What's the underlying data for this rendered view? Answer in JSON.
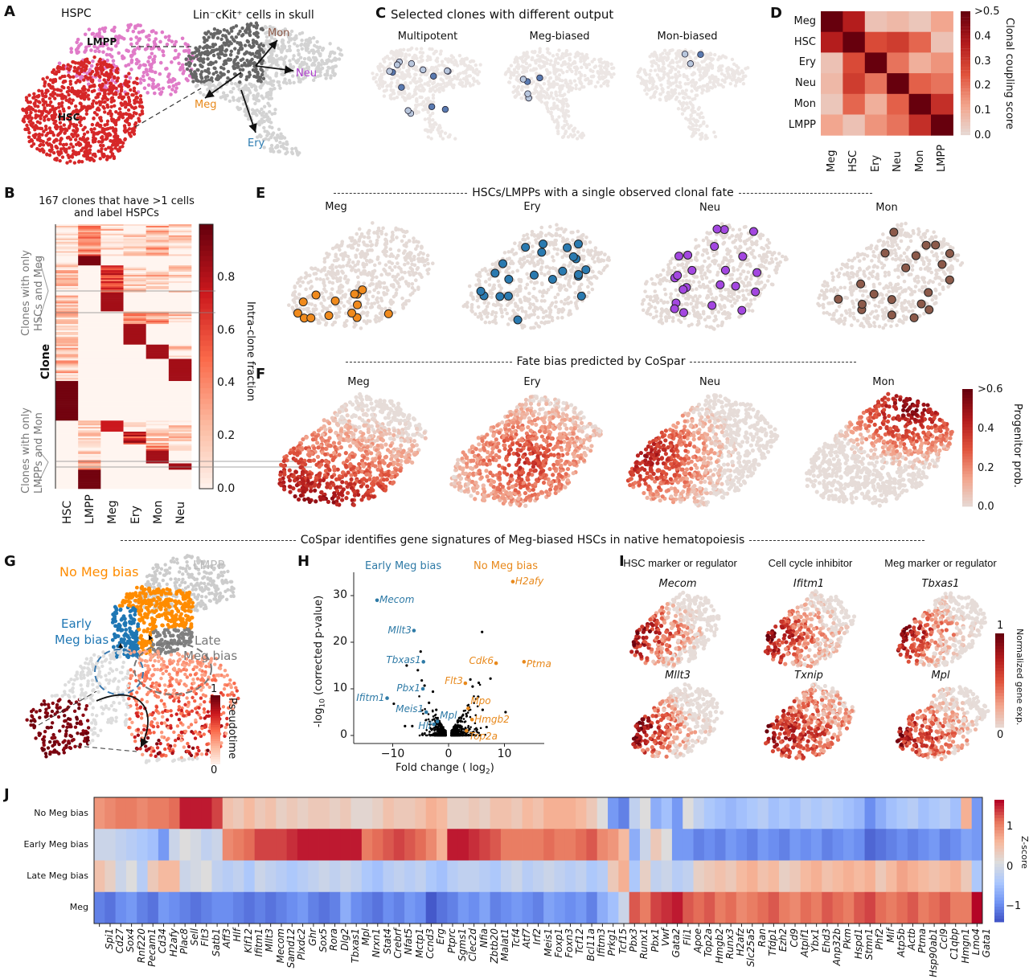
{
  "panel_letters": {
    "a": "A",
    "b": "B",
    "c": "C",
    "d": "D",
    "e": "E",
    "f": "F",
    "g": "G",
    "h": "H",
    "i": "I",
    "j": "J"
  },
  "panel_a": {
    "hspc_title": "HSPC",
    "lmpp_label": "LMPP",
    "hsc_label": "HSC",
    "umap_title": "Lin⁻cKit⁺ cells in skull",
    "fate_labels": {
      "mon": "Mon",
      "neu": "Neu",
      "meg": "Meg",
      "ery": "Ery"
    },
    "colors": {
      "lmpp": "#e07bc8",
      "hsc": "#d62728",
      "mon": "#8c5a4a",
      "neu": "#b040d0",
      "meg": "#e8891c",
      "ery": "#2a7ab0",
      "background": "#d3d3d3",
      "hspc_in_umap": "#666666"
    }
  },
  "panel_c": {
    "title": "Selected clones with different output",
    "subtitles": [
      "Multipotent",
      "Meg-biased",
      "Mon-biased"
    ]
  },
  "panel_e": {
    "header": "HSCs/LMPPs with a single observed clonal fate",
    "subtitles": [
      "Meg",
      "Ery",
      "Neu",
      "Mon"
    ],
    "colors": [
      "#f08a1c",
      "#2a7ab0",
      "#a347e0",
      "#8c5a4a"
    ]
  },
  "panel_f": {
    "header": "Fate bias predicted by CoSpar",
    "subtitles": [
      "Meg",
      "Ery",
      "Neu",
      "Mon"
    ],
    "colorbar": {
      "label": "Progenitor prob.",
      "ticks": [
        ">0.6",
        "0.4",
        "0.2",
        "0.0"
      ]
    }
  },
  "section_header": "CoSpar identifies gene signatures of Meg-biased HSCs in native hematopoiesis",
  "panel_g": {
    "no_meg_bias": "No Meg bias",
    "early_meg_bias": [
      "Early",
      "Meg bias"
    ],
    "late_meg_bias": [
      "Late",
      "Meg bias"
    ],
    "lmpp": "LMPP",
    "colorbar": {
      "label": "Pseudotime",
      "max": "1",
      "min": "0"
    },
    "colors": {
      "no_meg": "#ff8c00",
      "early_meg": "#1f77b4",
      "late_meg": "#808080",
      "lmpp": "#cccccc"
    }
  },
  "panel_i": {
    "titles": [
      "HSC marker or regulator",
      "Cell cycle inhibitor",
      "Meg marker or regulator"
    ],
    "genes": [
      [
        "Mecom",
        "Ifitm1",
        "Tbxas1"
      ],
      [
        "Mllt3",
        "Txnip",
        "Mpl"
      ]
    ],
    "colorbar": {
      "label": "Normalized gene exp.",
      "max": "1",
      "min": "0"
    }
  },
  "chart_data": [
    {
      "panel": "D",
      "type": "heatmap",
      "rows": [
        "Meg",
        "HSC",
        "Ery",
        "Neu",
        "Mon",
        "LMPP"
      ],
      "columns": [
        "Meg",
        "HSC",
        "Ery",
        "Neu",
        "Mon",
        "LMPP"
      ],
      "values": [
        [
          0.5,
          0.37,
          0.06,
          0.08,
          0.05,
          0.12
        ],
        [
          0.37,
          0.5,
          0.27,
          0.3,
          0.22,
          0.06
        ],
        [
          0.06,
          0.27,
          0.5,
          0.2,
          0.1,
          0.15
        ],
        [
          0.08,
          0.3,
          0.2,
          0.5,
          0.23,
          0.2
        ],
        [
          0.05,
          0.22,
          0.1,
          0.23,
          0.5,
          0.33
        ],
        [
          0.12,
          0.06,
          0.15,
          0.2,
          0.33,
          0.5
        ]
      ],
      "colorbar": {
        "label": "Clonal coupling score",
        "ticks": [
          ">0.5",
          "0.4",
          "0.3",
          "0.2",
          "0.1",
          "0.0"
        ],
        "range": [
          0,
          0.5
        ]
      }
    },
    {
      "panel": "B",
      "type": "heatmap",
      "title": [
        "167 clones that have >1 cells",
        "and label HSPCs"
      ],
      "ylabel": "Clone",
      "columns": [
        "HSC",
        "LMPP",
        "Meg",
        "Ery",
        "Mon",
        "Neu"
      ],
      "row_groups": [
        {
          "clones": 20,
          "fractions": [
            0.05,
            0.4,
            0.12,
            0.1,
            0.25,
            0.15
          ]
        },
        {
          "clones": 6,
          "fractions": [
            0.05,
            0.95,
            0,
            0,
            0,
            0
          ]
        },
        {
          "clones": 17,
          "fractions": [
            0.15,
            0,
            0.6,
            0.1,
            0.15,
            0.1
          ]
        },
        {
          "clones": 12,
          "fractions": [
            0.15,
            0,
            0.85,
            0,
            0,
            0
          ]
        },
        {
          "clones": 8,
          "fractions": [
            0.15,
            0,
            0,
            0.4,
            0.35,
            0.15
          ]
        },
        {
          "clones": 13,
          "fractions": [
            0.15,
            0,
            0,
            0.85,
            0,
            0
          ]
        },
        {
          "clones": 9,
          "fractions": [
            0.15,
            0,
            0,
            0,
            0.85,
            0.1
          ]
        },
        {
          "clones": 14,
          "fractions": [
            0.2,
            0,
            0,
            0,
            0,
            0.85
          ]
        },
        {
          "clones": 25,
          "fractions": [
            0.97,
            0,
            0,
            0,
            0,
            0
          ]
        },
        {
          "clones": 7,
          "fractions": [
            0,
            0.05,
            0.75,
            0.05,
            0.05,
            0.1
          ]
        },
        {
          "clones": 8,
          "fractions": [
            0,
            0.1,
            0,
            0.65,
            0.1,
            0.1
          ]
        },
        {
          "clones": 4,
          "fractions": [
            0,
            0.2,
            0,
            0,
            0.45,
            0.3
          ]
        },
        {
          "clones": 8,
          "fractions": [
            0,
            0.2,
            0,
            0,
            0.85,
            0
          ]
        },
        {
          "clones": 4,
          "fractions": [
            0,
            0.2,
            0,
            0,
            0,
            0.85
          ]
        },
        {
          "clones": 12,
          "fractions": [
            0,
            0.97,
            0,
            0,
            0,
            0
          ]
        }
      ],
      "group_labels": [
        [
          "Clones with only",
          "HSCs and Meg"
        ],
        [
          "Clones with only",
          "LMPPs and Mon"
        ]
      ],
      "colorbar": {
        "label": "Intra-clone fraction",
        "ticks": [
          "0.0",
          "0.2",
          "0.4",
          "0.6",
          "0.8"
        ],
        "range": [
          0,
          1
        ]
      }
    },
    {
      "panel": "H",
      "type": "scatter",
      "xlabel": "Fold change ( log",
      "xlabel_sub": "2",
      "xlabel_end": ")",
      "ylabel": "(corrected p-value)",
      "ylabel_prefix": "-log",
      "ylabel_sub": "10",
      "xlim": [
        -17,
        17
      ],
      "ylim": [
        -1.5,
        34
      ],
      "xticks": [
        -10,
        0,
        10
      ],
      "yticks": [
        0,
        10,
        20,
        30
      ],
      "group_labels": {
        "left": "Early Meg bias",
        "right": "No Meg bias"
      },
      "colors": {
        "left": "#2e7aa6",
        "right": "#e8891c",
        "other": "#000000"
      },
      "labeled_points": [
        {
          "gene": "Mecom",
          "x": -12.8,
          "y": 29,
          "side": "left"
        },
        {
          "gene": "Mllt3",
          "x": -6.2,
          "y": 22.5,
          "side": "left"
        },
        {
          "gene": "Tbxas1",
          "x": -4.5,
          "y": 15.8,
          "side": "left"
        },
        {
          "gene": "Pbx1",
          "x": -4.6,
          "y": 10,
          "side": "left"
        },
        {
          "gene": "Ifitm1",
          "x": -11,
          "y": 8,
          "side": "left"
        },
        {
          "gene": "Meis1",
          "x": -4,
          "y": 5,
          "side": "left"
        },
        {
          "gene": "Mpl",
          "x": -2,
          "y": 3,
          "side": "left"
        },
        {
          "gene": "Hlf",
          "x": -2.6,
          "y": 2.4,
          "side": "left"
        },
        {
          "gene": "H2afy",
          "x": 11.5,
          "y": 33,
          "side": "right"
        },
        {
          "gene": "Cdk6",
          "x": 8.5,
          "y": 15.5,
          "side": "right"
        },
        {
          "gene": "Ptma",
          "x": 13.5,
          "y": 15.8,
          "side": "right"
        },
        {
          "gene": "Flt3",
          "x": 3,
          "y": 11.2,
          "side": "right"
        },
        {
          "gene": "Mpo",
          "x": 3.5,
          "y": 5.8,
          "side": "right"
        },
        {
          "gene": "Hmgb2",
          "x": 4.2,
          "y": 3.4,
          "side": "right"
        },
        {
          "gene": "Top2a",
          "x": 3.2,
          "y": 1,
          "side": "right"
        }
      ],
      "other_points": [
        [
          6,
          22.2
        ],
        [
          -5,
          18
        ],
        [
          -7.5,
          15
        ],
        [
          -5.5,
          14
        ],
        [
          7.5,
          12.2
        ],
        [
          -4.8,
          11.8
        ],
        [
          -4.3,
          10.7
        ],
        [
          -2.8,
          9.4
        ],
        [
          -9.8,
          6.8
        ],
        [
          -3.5,
          7
        ],
        [
          5.3,
          8.3
        ],
        [
          10.2,
          5
        ],
        [
          6.8,
          1.8
        ],
        [
          -6.5,
          2
        ],
        [
          -7.8,
          2
        ],
        [
          3.9,
          12
        ],
        [
          5.4,
          11.3
        ],
        [
          4.3,
          10.5
        ],
        [
          6.1,
          5.5
        ],
        [
          -2.2,
          5.5
        ]
      ]
    },
    {
      "panel": "J",
      "type": "heatmap",
      "rows": [
        "No Meg bias",
        "Early Meg bias",
        "Late Meg bias",
        "Meg"
      ],
      "columns": [
        "Spi1",
        "Cd27",
        "Sox4",
        "Rnf220",
        "Pecam1",
        "Cd34",
        "H2afy",
        "Plac8",
        "Sell",
        "Flt3",
        "Satb1",
        "Aff3",
        "Hlf",
        "Klf12",
        "Ifitm1",
        "Mllt3",
        "Mecom",
        "Samd12",
        "Plxdc2",
        "Ghr",
        "Sox5",
        "Rora",
        "Dlg2",
        "Tbxas1",
        "Mpl",
        "Nrxn1",
        "Stat4",
        "Crebrf",
        "Nfat5",
        "Mctp1",
        "Ccnd3",
        "Erg",
        "Ptprc",
        "Sgms1",
        "Clec2d",
        "Nfia",
        "Zbtb20",
        "Malat1",
        "Tcf4",
        "Atf7",
        "Irf2",
        "Meis1",
        "Foxp1",
        "Foxn3",
        "Tcf12",
        "Bcl11a",
        "Ifitm3",
        "Prkg1",
        "Tcf15",
        "Pbx3",
        "Runx1",
        "Pbx1",
        "Vwf",
        "Gata2",
        "Fli1",
        "Apoe",
        "Top2a",
        "Hmgb2",
        "Runx3",
        "H2afz",
        "Slc25a5",
        "Ran",
        "Tfdp1",
        "Ezh2",
        "Cd9",
        "Atpif1",
        "Ybx1",
        "Ehd3",
        "Anp32b",
        "Pkm",
        "Hspd1",
        "Stmn1",
        "Phf2",
        "Mif",
        "Atp5b",
        "Actb",
        "Ptma",
        "Hsp90ab1",
        "Ccl9",
        "C1qbp",
        "Hmgn1",
        "Lmo4",
        "Gata1"
      ],
      "values": [
        [
          0.8,
          0.9,
          1.0,
          1.0,
          0.9,
          1.0,
          1.0,
          1.1,
          1.5,
          1.5,
          1.5,
          1.3,
          0.4,
          0.3,
          0.5,
          0.3,
          0.4,
          0.2,
          0.3,
          0.2,
          0.3,
          0.3,
          0.2,
          0.3,
          0.1,
          0.1,
          0.2,
          0.4,
          0.3,
          0.3,
          0.4,
          0.6,
          0.5,
          0.2,
          0.2,
          0.3,
          0.2,
          0.4,
          0.4,
          0.3,
          0.5,
          0.4,
          0.6,
          0.6,
          0.6,
          0.5,
          0.3,
          0.0,
          -1.0,
          -1.2,
          -0.3,
          0.0,
          -0.8,
          -0.6,
          -1.0,
          0.0,
          -0.3,
          -0.5,
          -0.6,
          -0.7,
          -0.6,
          -0.5,
          -0.4,
          -0.6,
          -0.5,
          -0.6,
          -0.4,
          -0.5,
          -0.4,
          -0.5,
          -0.6,
          -0.7,
          -1.1,
          -0.8,
          -0.6,
          -0.5,
          -0.4,
          -0.6,
          -0.5,
          -0.4,
          -0.6,
          0.6,
          -1.0
        ],
        [
          -0.2,
          -0.2,
          -0.3,
          -0.4,
          -0.5,
          -0.6,
          -1.0,
          -0.2,
          0.0,
          -0.1,
          -0.3,
          -0.2,
          0.9,
          1.0,
          1.1,
          1.3,
          1.3,
          1.3,
          1.4,
          1.5,
          1.5,
          1.5,
          1.5,
          1.5,
          1.5,
          1.0,
          1.1,
          1.2,
          1.3,
          1.2,
          1.1,
          0.9,
          0.6,
          1.5,
          1.5,
          1.4,
          1.3,
          1.2,
          1.0,
          1.0,
          1.0,
          1.0,
          1.1,
          1.0,
          1.0,
          1.1,
          1.2,
          0.9,
          0.8,
          0.5,
          -0.8,
          -0.2,
          0.3,
          0.0,
          -1.0,
          -1.0,
          -1.2,
          -1.1,
          -1.2,
          -1.0,
          -1.1,
          -1.2,
          -1.0,
          -1.1,
          -1.2,
          -1.0,
          -1.1,
          -1.0,
          -1.2,
          -1.1,
          -1.0,
          -1.1,
          -1.4,
          -1.3,
          -1.2,
          -1.1,
          -1.2,
          -1.1,
          -1.0,
          -1.2,
          -1.1,
          -0.9,
          -1.0
        ],
        [
          0.4,
          0.2,
          -0.2,
          0.0,
          -0.4,
          0.3,
          0.5,
          0.5,
          -0.2,
          -0.1,
          0.0,
          -0.3,
          -0.4,
          -0.3,
          -0.5,
          -0.2,
          -0.3,
          -0.4,
          -0.5,
          -0.4,
          -0.3,
          -0.2,
          -0.3,
          -0.2,
          -0.3,
          -0.5,
          -0.6,
          -0.4,
          -0.3,
          -0.4,
          -0.3,
          -0.5,
          -0.6,
          -0.4,
          -0.3,
          -0.3,
          -0.4,
          -0.5,
          -0.3,
          -0.2,
          -0.4,
          -0.3,
          -0.2,
          -0.3,
          -0.4,
          -0.3,
          -0.5,
          -0.4,
          0.3,
          0.6,
          -0.5,
          0.2,
          -0.3,
          -0.2,
          -0.4,
          -0.3,
          0.2,
          0.3,
          0.4,
          0.3,
          0.5,
          0.6,
          0.4,
          0.5,
          0.2,
          0.3,
          0.5,
          0.6,
          0.4,
          0.5,
          0.6,
          0.5,
          0.6,
          0.3,
          0.5,
          0.7,
          0.6,
          0.5,
          0.4,
          0.5,
          0.6,
          0.3,
          -0.5
        ],
        [
          -1.2,
          -1.3,
          -1.1,
          -1.0,
          -1.2,
          -1.3,
          -1.0,
          -1.1,
          -1.2,
          -1.3,
          -1.2,
          -1.1,
          -1.1,
          -1.2,
          -1.3,
          -1.2,
          -1.3,
          -1.2,
          -1.1,
          -1.0,
          -1.2,
          -1.3,
          -1.2,
          -0.8,
          -1.1,
          -1.2,
          -1.3,
          -1.1,
          -1.2,
          -1.0,
          -1.1,
          -1.5,
          -1.3,
          -1.2,
          -1.0,
          -1.1,
          -0.9,
          -1.2,
          -1.1,
          -1.0,
          -1.1,
          -1.2,
          -0.9,
          -1.0,
          -1.1,
          -1.0,
          -1.2,
          -0.8,
          -0.6,
          -0.2,
          1.2,
          1.0,
          1.3,
          1.4,
          1.5,
          1.2,
          1.1,
          1.2,
          1.0,
          1.1,
          0.9,
          1.0,
          1.1,
          1.2,
          1.0,
          0.9,
          1.1,
          1.0,
          1.2,
          1.1,
          1.0,
          1.2,
          1.3,
          1.1,
          1.0,
          1.1,
          1.2,
          1.0,
          1.1,
          1.2,
          1.0,
          1.0,
          1.6
        ]
      ],
      "colorbar": {
        "label": "Z-score",
        "ticks": [
          "1",
          "0",
          "−1"
        ],
        "range": [
          -1.6,
          1.6
        ]
      }
    }
  ]
}
